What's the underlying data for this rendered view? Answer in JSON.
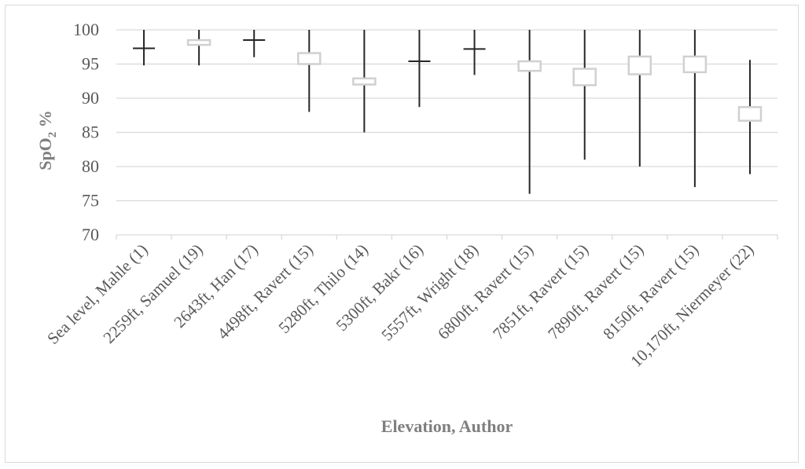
{
  "chart_data": {
    "type": "box",
    "xlabel": "Elevation, Author",
    "ylabel_main": "SpO",
    "ylabel_sub": "2",
    "ylabel_suffix": " %",
    "ylim": [
      70,
      100
    ],
    "yticks": [
      70,
      75,
      80,
      85,
      90,
      95,
      100
    ],
    "grid": true,
    "categories": [
      "Sea level, Mahle (1)",
      "2259ft, Samuel (19)",
      "2643ft, Han (17)",
      "4498ft, Ravert (15)",
      "5280ft, Thilo (14)",
      "5300ft, Bakr (16)",
      "5557ft, Wright (18)",
      "6800ft, Ravert (15)",
      "7851ft, Ravert (15)",
      "7890ft, Ravert (15)",
      "8150ft, Ravert (15)",
      "10,170ft, Niermeyer (22)"
    ],
    "series": [
      {
        "low": 94.8,
        "q1": 97.3,
        "q3": 97.3,
        "high": 100
      },
      {
        "low": 94.8,
        "q1": 97.8,
        "q3": 98.5,
        "high": 100
      },
      {
        "low": 96.0,
        "q1": 98.5,
        "q3": 98.5,
        "high": 100
      },
      {
        "low": 88.0,
        "q1": 95.0,
        "q3": 96.6,
        "high": 100
      },
      {
        "low": 85.0,
        "q1": 92.0,
        "q3": 92.9,
        "high": 100
      },
      {
        "low": 88.7,
        "q1": 95.4,
        "q3": 95.4,
        "high": 100
      },
      {
        "low": 93.4,
        "q1": 97.2,
        "q3": 97.2,
        "high": 100
      },
      {
        "low": 76.0,
        "q1": 94.0,
        "q3": 95.4,
        "high": 100
      },
      {
        "low": 81.0,
        "q1": 91.9,
        "q3": 94.3,
        "high": 100
      },
      {
        "low": 80.0,
        "q1": 93.5,
        "q3": 96.1,
        "high": 100
      },
      {
        "low": 77.0,
        "q1": 93.8,
        "q3": 96.1,
        "high": 100
      },
      {
        "low": 78.9,
        "q1": 86.7,
        "q3": 88.7,
        "high": 95.6
      }
    ],
    "colors": {
      "whisker": "#262626",
      "box_fill": "#ffffff",
      "box_stroke": "#d0d0d0",
      "grid": "#d9d9d9",
      "text": "#595959"
    }
  }
}
